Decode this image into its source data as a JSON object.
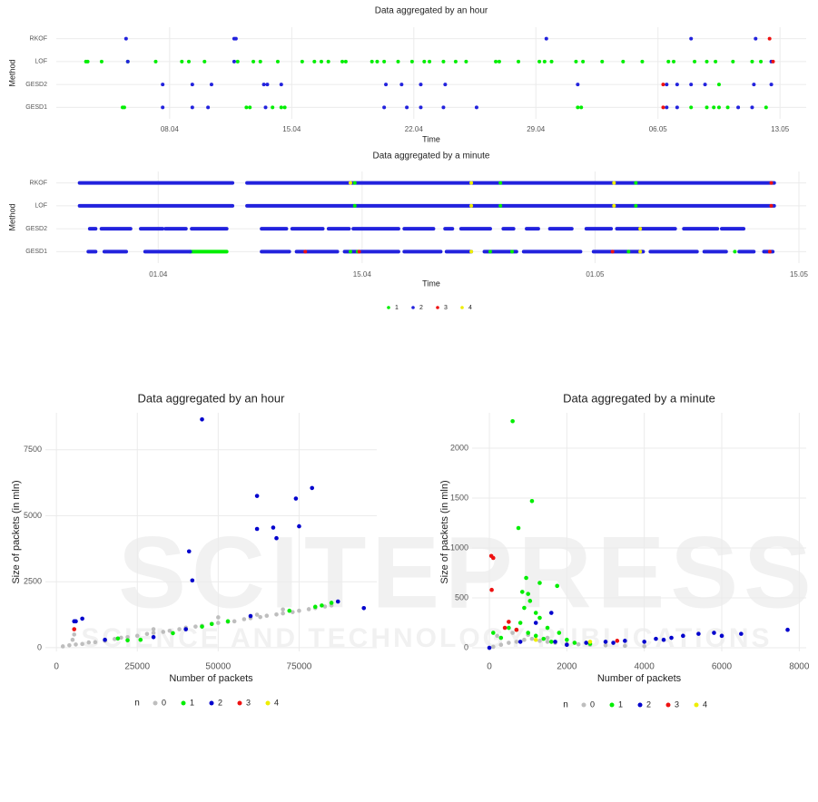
{
  "watermark": [
    "SCITEPRESS",
    "SCIENCE AND TECHNOLOGY PUBLICATIONS"
  ],
  "chart_data": [
    {
      "type": "timeline",
      "title": "Data aggregated by an hour",
      "xlabel": "Time",
      "ylabel": "Method",
      "categories": [
        "RKOF",
        "LOF",
        "GESD2",
        "GESD1"
      ],
      "xlim": [
        91.5,
        134.5
      ],
      "xticks": [
        {
          "value": 98,
          "label": "08.04"
        },
        {
          "value": 105,
          "label": "15.04"
        },
        {
          "value": 112,
          "label": "22.04"
        },
        {
          "value": 119,
          "label": "29.04"
        },
        {
          "value": 126,
          "label": "06.05"
        },
        {
          "value": 133,
          "label": "13.05"
        }
      ],
      "grid": true,
      "series": [
        {
          "color": "#00ee00",
          "x": [
            93.2,
            93.3,
            94.1,
            95.6,
            97.2,
            98.7,
            99.1,
            100.0,
            101.9,
            102.8,
            103.2,
            104.2,
            105.6,
            106.3,
            106.7,
            107.1,
            107.9,
            108.1,
            109.6,
            109.9,
            110.3,
            111.1,
            111.9,
            112.6,
            112.9,
            113.7,
            114.4,
            115.0,
            116.7,
            116.9,
            118.0,
            119.2,
            119.5,
            119.9,
            121.3,
            121.7,
            122.8,
            124.0,
            125.1,
            126.6,
            126.9,
            128.1,
            128.8,
            129.3,
            130.3,
            131.4,
            131.9,
            129.5,
            95.3,
            95.4,
            102.4,
            102.6,
            103.9,
            104.4,
            104.6,
            121.4,
            121.6,
            127.9,
            128.8,
            129.2,
            129.5,
            130.0,
            132.2
          ],
          "rows": [
            "LOF",
            "LOF",
            "LOF",
            "LOF",
            "LOF",
            "LOF",
            "LOF",
            "LOF",
            "LOF",
            "LOF",
            "LOF",
            "LOF",
            "LOF",
            "LOF",
            "LOF",
            "LOF",
            "LOF",
            "LOF",
            "LOF",
            "LOF",
            "LOF",
            "LOF",
            "LOF",
            "LOF",
            "LOF",
            "LOF",
            "LOF",
            "LOF",
            "LOF",
            "LOF",
            "LOF",
            "LOF",
            "LOF",
            "LOF",
            "LOF",
            "LOF",
            "LOF",
            "LOF",
            "LOF",
            "LOF",
            "LOF",
            "LOF",
            "LOF",
            "LOF",
            "LOF",
            "LOF",
            "LOF",
            "GESD2",
            "GESD1",
            "GESD1",
            "GESD1",
            "GESD1",
            "GESD1",
            "GESD1",
            "GESD1",
            "GESD1",
            "GESD1",
            "GESD1",
            "GESD1",
            "GESD1",
            "GESD1",
            "GESD1",
            "GESD1"
          ]
        },
        {
          "color": "#2222dd",
          "x": [
            95.5,
            101.7,
            101.8,
            119.6,
            127.9,
            131.6,
            95.6,
            101.7,
            132.5,
            97.6,
            99.3,
            100.4,
            103.4,
            103.6,
            104.4,
            110.4,
            111.3,
            112.4,
            113.8,
            121.4,
            126.5,
            127.1,
            127.9,
            128.7,
            131.5,
            132.5,
            97.6,
            99.3,
            100.2,
            103.5,
            110.3,
            111.6,
            112.4,
            113.7,
            115.6,
            126.5,
            127.1,
            130.6,
            131.4
          ],
          "rows": [
            "RKOF",
            "RKOF",
            "RKOF",
            "RKOF",
            "RKOF",
            "RKOF",
            "LOF",
            "LOF",
            "LOF",
            "GESD2",
            "GESD2",
            "GESD2",
            "GESD2",
            "GESD2",
            "GESD2",
            "GESD2",
            "GESD2",
            "GESD2",
            "GESD2",
            "GESD2",
            "GESD2",
            "GESD2",
            "GESD2",
            "GESD2",
            "GESD2",
            "GESD2",
            "GESD1",
            "GESD1",
            "GESD1",
            "GESD1",
            "GESD1",
            "GESD1",
            "GESD1",
            "GESD1",
            "GESD1",
            "GESD1",
            "GESD1",
            "GESD1",
            "GESD1"
          ]
        },
        {
          "color": "#ee1111",
          "x": [
            132.4,
            126.3,
            126.3,
            132.6
          ],
          "rows": [
            "RKOF",
            "GESD2",
            "GESD1",
            "LOF"
          ]
        }
      ]
    },
    {
      "type": "timeline",
      "title": "Data aggregated by a minute",
      "xlabel": "Time",
      "ylabel": "Method",
      "categories": [
        "RKOF",
        "LOF",
        "GESD2",
        "GESD1"
      ],
      "xlim": [
        84,
        135.5
      ],
      "xticks": [
        {
          "value": 91,
          "label": "01.04"
        },
        {
          "value": 105,
          "label": "15.04"
        },
        {
          "value": 121,
          "label": "01.05"
        },
        {
          "value": 135,
          "label": "15.05"
        }
      ],
      "grid": true,
      "legend": "bottom",
      "series": [
        {
          "name": "1",
          "color": "#00ee00",
          "x": [
            104.2,
            104.7,
            113.8,
            115.3,
            123.3,
            130.6,
            104.5,
            114.5,
            123.8,
            104.5,
            114.5,
            123.8
          ],
          "rows": [
            "GESD1",
            "GESD1",
            "GESD1",
            "GESD1",
            "GESD1",
            "GESD1",
            "RKOF",
            "RKOF",
            "RKOF",
            "LOF",
            "LOF",
            "LOF"
          ],
          "spans": [
            [
              93.2,
              95.7
            ]
          ],
          "span_rows": [
            "GESD1"
          ]
        },
        {
          "name": "2",
          "color": "#2222dd",
          "x": [],
          "rows": [],
          "spans": [
            [
              85.6,
              96.1
            ],
            [
              97.1,
              133.3
            ],
            [
              85.6,
              96.1
            ],
            [
              97.1,
              133.3
            ],
            [
              86.3,
              86.7
            ],
            [
              87.1,
              89.1
            ],
            [
              89.8,
              91.3
            ],
            [
              91.5,
              92.9
            ],
            [
              93.3,
              95.7
            ],
            [
              98.1,
              99.8
            ],
            [
              100.2,
              102.3
            ],
            [
              102.7,
              104.1
            ],
            [
              104.4,
              107.5
            ],
            [
              107.9,
              109.9
            ],
            [
              110.7,
              111.2
            ],
            [
              111.8,
              113.8
            ],
            [
              114.7,
              115.4
            ],
            [
              116.3,
              117.1
            ],
            [
              117.9,
              119.4
            ],
            [
              120.4,
              122.1
            ],
            [
              122.5,
              126.5
            ],
            [
              127.1,
              129.4
            ],
            [
              129.7,
              131.2
            ],
            [
              86.2,
              86.7
            ],
            [
              87.3,
              88.8
            ],
            [
              90.1,
              93.2
            ],
            [
              98.1,
              100.0
            ],
            [
              100.5,
              103.3
            ],
            [
              103.8,
              107.5
            ],
            [
              107.9,
              110.4
            ],
            [
              110.8,
              112.5
            ],
            [
              113.4,
              115.6
            ],
            [
              116.1,
              120.0
            ],
            [
              120.9,
              124.3
            ],
            [
              124.8,
              128.0
            ],
            [
              128.5,
              130.0
            ],
            [
              130.9,
              131.9
            ],
            [
              132.6,
              133.2
            ]
          ],
          "span_rows": [
            "RKOF",
            "RKOF",
            "LOF",
            "LOF",
            "GESD2",
            "GESD2",
            "GESD2",
            "GESD2",
            "GESD2",
            "GESD2",
            "GESD2",
            "GESD2",
            "GESD2",
            "GESD2",
            "GESD2",
            "GESD2",
            "GESD2",
            "GESD2",
            "GESD2",
            "GESD2",
            "GESD2",
            "GESD2",
            "GESD2",
            "GESD1",
            "GESD1",
            "GESD1",
            "GESD1",
            "GESD1",
            "GESD1",
            "GESD1",
            "GESD1",
            "GESD1",
            "GESD1",
            "GESD1",
            "GESD1",
            "GESD1",
            "GESD1",
            "GESD1"
          ]
        },
        {
          "name": "3",
          "color": "#ee1111",
          "x": [
            101.1,
            104.8,
            122.2,
            133.0,
            133.1,
            133.1
          ],
          "rows": [
            "GESD1",
            "GESD1",
            "GESD1",
            "GESD1",
            "RKOF",
            "LOF"
          ],
          "spans": [],
          "span_rows": []
        },
        {
          "name": "4",
          "color": "#eeee00",
          "x": [
            112.5,
            124.1,
            104.2,
            112.5,
            122.3,
            112.5,
            122.3,
            124.1
          ],
          "rows": [
            "GESD1",
            "GESD1",
            "RKOF",
            "RKOF",
            "RKOF",
            "LOF",
            "LOF",
            "GESD2"
          ],
          "spans": [],
          "span_rows": []
        }
      ]
    },
    {
      "type": "scatter",
      "title": "Data aggregated by an hour",
      "xlabel": "Number of packets",
      "ylabel": "Size of packets (in mln)",
      "legend_title": "n",
      "legend": "bottom",
      "grid": true,
      "xlim": [
        -3400,
        99000
      ],
      "ylim": [
        -140,
        8900
      ],
      "xticks": [
        0,
        25000,
        50000,
        75000
      ],
      "yticks": [
        0,
        2500,
        5000,
        7500
      ],
      "series": [
        {
          "name": "0",
          "color": "#bebebe",
          "x": [
            2000,
            4000,
            6000,
            8000,
            10000,
            12000,
            15000,
            18000,
            20000,
            22000,
            25000,
            28000,
            30000,
            33000,
            35000,
            38000,
            40000,
            43000,
            45000,
            48000,
            50000,
            53000,
            55000,
            58000,
            60000,
            63000,
            65000,
            68000,
            70000,
            73000,
            75000,
            78000,
            80000,
            83000,
            85000,
            5000,
            5500,
            30000,
            50000,
            62000,
            70000
          ],
          "y": [
            50,
            90,
            120,
            140,
            200,
            210,
            260,
            330,
            380,
            400,
            450,
            520,
            560,
            600,
            640,
            700,
            760,
            800,
            830,
            900,
            940,
            980,
            1000,
            1080,
            1120,
            1160,
            1210,
            1260,
            1300,
            1350,
            1400,
            1460,
            1500,
            1560,
            1600,
            300,
            500,
            700,
            1150,
            1250,
            1450
          ]
        },
        {
          "name": "1",
          "color": "#00ee00",
          "x": [
            19000,
            22000,
            26000,
            36000,
            45000,
            48000,
            53000,
            72000,
            80000,
            82000,
            85000
          ],
          "y": [
            350,
            280,
            300,
            550,
            800,
            900,
            1000,
            1400,
            1550,
            1600,
            1700
          ]
        },
        {
          "name": "2",
          "color": "#0000cd",
          "x": [
            5500,
            6000,
            8000,
            45000,
            62000,
            74000,
            79000,
            62000,
            67000,
            75000,
            68000,
            41000,
            42000,
            15000,
            30000,
            40000,
            60000,
            87000,
            95000
          ],
          "y": [
            1000,
            1000,
            1100,
            8650,
            5750,
            5650,
            6050,
            4500,
            4550,
            4600,
            4150,
            3650,
            2550,
            300,
            400,
            700,
            1200,
            1750,
            1500
          ]
        },
        {
          "name": "3",
          "color": "#ee1111",
          "x": [
            5500
          ],
          "y": [
            700
          ]
        },
        {
          "name": "4",
          "color": "#eeee00",
          "x": [],
          "y": []
        }
      ]
    },
    {
      "type": "scatter",
      "title": "Data aggregated by a minute",
      "xlabel": "Number of packets",
      "ylabel": "Size of packets (in mln)",
      "legend_title": "n",
      "legend": "bottom",
      "grid": true,
      "xlim": [
        -446,
        8180
      ],
      "ylim": [
        -36,
        2354
      ],
      "xticks": [
        0,
        2000,
        4000,
        6000,
        8000
      ],
      "yticks": [
        0,
        500,
        1000,
        1500,
        2000
      ],
      "series": [
        {
          "name": "0",
          "color": "#bebebe",
          "x": [
            100,
            300,
            500,
            700,
            900,
            1100,
            1300,
            1500,
            1700,
            2000,
            2300,
            2600,
            3000,
            3500,
            4000,
            200,
            600,
            1000,
            1500
          ],
          "y": [
            10,
            30,
            50,
            60,
            80,
            90,
            70,
            60,
            50,
            40,
            35,
            30,
            25,
            20,
            15,
            120,
            150,
            130,
            100
          ]
        },
        {
          "name": "1",
          "color": "#00ee00",
          "x": [
            600,
            1100,
            750,
            950,
            850,
            1000,
            1050,
            1750,
            1300,
            900,
            1200,
            1300,
            800,
            500,
            700,
            1000,
            1200,
            1500,
            1800,
            2000,
            1400,
            1600,
            2200,
            2600,
            100,
            300
          ],
          "y": [
            2270,
            1470,
            1200,
            700,
            560,
            540,
            470,
            620,
            650,
            400,
            350,
            300,
            250,
            200,
            180,
            150,
            120,
            200,
            150,
            80,
            90,
            60,
            50,
            40,
            150,
            100
          ]
        },
        {
          "name": "2",
          "color": "#0000cd",
          "x": [
            0,
            800,
            1700,
            2500,
            3000,
            3500,
            4000,
            4300,
            4700,
            5000,
            5400,
            5800,
            6000,
            6500,
            7700,
            1200,
            2000,
            3200,
            4500,
            1600
          ],
          "y": [
            0,
            60,
            60,
            50,
            60,
            70,
            60,
            90,
            100,
            120,
            140,
            150,
            120,
            140,
            180,
            250,
            30,
            50,
            80,
            350
          ]
        },
        {
          "name": "3",
          "color": "#ee1111",
          "x": [
            50,
            100,
            60,
            500,
            400,
            700,
            3300
          ],
          "y": [
            920,
            900,
            580,
            260,
            200,
            180,
            70
          ]
        },
        {
          "name": "4",
          "color": "#eeee00",
          "x": [
            1200,
            2600
          ],
          "y": [
            80,
            60
          ]
        }
      ]
    }
  ]
}
